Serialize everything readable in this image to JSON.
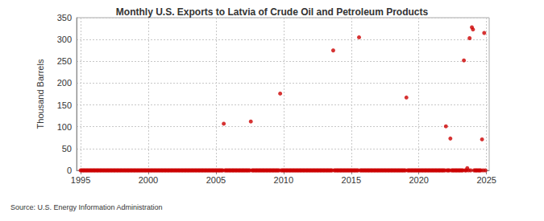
{
  "chart_data": {
    "type": "scatter",
    "title": "Monthly U.S. Exports to Latvia of Crude Oil and Petroleum Products",
    "y_label": "Thousand Barrels",
    "source": "Source: U.S. Energy Information Administration",
    "color": "#cc0000",
    "marker": "circle",
    "grid": true,
    "xlim": [
      1994.7,
      2025.2
    ],
    "xticks": [
      1995,
      2000,
      2005,
      2010,
      2015,
      2020,
      2025
    ],
    "ylim": [
      0,
      350
    ],
    "yticks": [
      0,
      50,
      100,
      150,
      200,
      250,
      300,
      350
    ],
    "x": [
      1995,
      1995.08,
      1995.17,
      1995.25,
      1995.33,
      1995.42,
      1995.5,
      1995.58,
      1995.67,
      1995.75,
      1995.83,
      1995.92,
      1996,
      1996.08,
      1996.17,
      1996.25,
      1996.33,
      1996.42,
      1996.5,
      1996.58,
      1996.67,
      1996.75,
      1996.83,
      1996.92,
      1997,
      1997.08,
      1997.17,
      1997.25,
      1997.33,
      1997.42,
      1997.5,
      1997.58,
      1997.67,
      1997.75,
      1997.83,
      1997.92,
      1998,
      1998.08,
      1998.17,
      1998.25,
      1998.33,
      1998.42,
      1998.5,
      1998.58,
      1998.67,
      1998.75,
      1998.83,
      1998.92,
      1999,
      1999.08,
      1999.17,
      1999.25,
      1999.33,
      1999.42,
      1999.5,
      1999.58,
      1999.67,
      1999.75,
      1999.83,
      1999.92,
      2000,
      2000.08,
      2000.17,
      2000.25,
      2000.33,
      2000.42,
      2000.5,
      2000.58,
      2000.67,
      2000.75,
      2000.83,
      2000.92,
      2001,
      2001.08,
      2001.17,
      2001.25,
      2001.33,
      2001.42,
      2001.5,
      2001.58,
      2001.67,
      2001.75,
      2001.83,
      2001.92,
      2002,
      2002.08,
      2002.17,
      2002.25,
      2002.33,
      2002.42,
      2002.5,
      2002.58,
      2002.67,
      2002.75,
      2002.83,
      2002.92,
      2003,
      2003.08,
      2003.17,
      2003.25,
      2003.33,
      2003.42,
      2003.5,
      2003.58,
      2003.67,
      2003.75,
      2003.83,
      2003.92,
      2004,
      2004.08,
      2004.17,
      2004.25,
      2004.33,
      2004.42,
      2004.5,
      2004.58,
      2004.67,
      2004.75,
      2004.83,
      2004.92,
      2005,
      2005.08,
      2005.17,
      2005.25,
      2005.33,
      2005.42,
      2005.5,
      2005.58,
      2005.67,
      2005.75,
      2005.83,
      2005.92,
      2006,
      2006.08,
      2006.17,
      2006.25,
      2006.33,
      2006.42,
      2006.5,
      2006.58,
      2006.67,
      2006.75,
      2006.83,
      2006.92,
      2007,
      2007.08,
      2007.17,
      2007.25,
      2007.33,
      2007.42,
      2007.5,
      2007.58,
      2007.67,
      2007.75,
      2007.83,
      2007.92,
      2008,
      2008.08,
      2008.17,
      2008.25,
      2008.33,
      2008.42,
      2008.5,
      2008.58,
      2008.67,
      2008.75,
      2008.83,
      2008.92,
      2009,
      2009.08,
      2009.17,
      2009.25,
      2009.33,
      2009.42,
      2009.5,
      2009.58,
      2009.67,
      2009.75,
      2009.83,
      2009.92,
      2010,
      2010.08,
      2010.17,
      2010.25,
      2010.33,
      2010.42,
      2010.5,
      2010.58,
      2010.67,
      2010.75,
      2010.83,
      2010.92,
      2011,
      2011.08,
      2011.17,
      2011.25,
      2011.33,
      2011.42,
      2011.5,
      2011.58,
      2011.67,
      2011.75,
      2011.83,
      2011.92,
      2012,
      2012.08,
      2012.17,
      2012.25,
      2012.33,
      2012.42,
      2012.5,
      2012.58,
      2012.67,
      2012.75,
      2012.83,
      2012.92,
      2013,
      2013.08,
      2013.17,
      2013.25,
      2013.33,
      2013.42,
      2013.5,
      2013.58,
      2013.67,
      2013.75,
      2013.83,
      2013.92,
      2014,
      2014.08,
      2014.17,
      2014.25,
      2014.33,
      2014.42,
      2014.5,
      2014.58,
      2014.67,
      2014.75,
      2014.83,
      2014.92,
      2015,
      2015.08,
      2015.17,
      2015.25,
      2015.33,
      2015.42,
      2015.5,
      2015.58,
      2015.67,
      2015.75,
      2015.83,
      2015.92,
      2016,
      2016.08,
      2016.17,
      2016.25,
      2016.33,
      2016.42,
      2016.5,
      2016.58,
      2016.67,
      2016.75,
      2016.83,
      2016.92,
      2017,
      2017.08,
      2017.17,
      2017.25,
      2017.33,
      2017.42,
      2017.5,
      2017.58,
      2017.67,
      2017.75,
      2017.83,
      2017.92,
      2018,
      2018.08,
      2018.17,
      2018.25,
      2018.33,
      2018.42,
      2018.5,
      2018.58,
      2018.67,
      2018.75,
      2018.83,
      2018.92,
      2019,
      2019.08,
      2019.17,
      2019.25,
      2019.33,
      2019.42,
      2019.5,
      2019.58,
      2019.67,
      2019.75,
      2019.83,
      2019.92,
      2020,
      2020.08,
      2020.17,
      2020.25,
      2020.33,
      2020.42,
      2020.5,
      2020.58,
      2020.67,
      2020.75,
      2020.83,
      2020.92,
      2021,
      2021.08,
      2021.17,
      2021.25,
      2021.33,
      2021.42,
      2021.5,
      2021.58,
      2021.67,
      2021.75,
      2021.83,
      2021.92,
      2022,
      2022.08,
      2022.17,
      2022.25,
      2022.33,
      2022.42,
      2022.5,
      2022.58,
      2022.67,
      2022.75,
      2022.83,
      2022.92,
      2023,
      2023.08,
      2023.17,
      2023.25,
      2023.33,
      2023.42,
      2023.5,
      2023.58,
      2023.67,
      2023.75,
      2023.83,
      2023.92,
      2024,
      2024.08,
      2024.17,
      2024.25,
      2024.33,
      2024.42,
      2024.5,
      2024.58,
      2024.67,
      2024.75,
      2024.83,
      2024.92
    ],
    "values": [
      0,
      0,
      0,
      0,
      0,
      0,
      0,
      0,
      0,
      0,
      0,
      0,
      0,
      0,
      0,
      0,
      0,
      0,
      0,
      0,
      0,
      0,
      0,
      0,
      0,
      0,
      0,
      0,
      0,
      0,
      0,
      0,
      0,
      0,
      0,
      0,
      0,
      0,
      0,
      0,
      0,
      0,
      0,
      0,
      0,
      0,
      0,
      0,
      0,
      0,
      0,
      0,
      0,
      0,
      0,
      0,
      0,
      0,
      0,
      0,
      0,
      0,
      0,
      0,
      0,
      0,
      0,
      0,
      0,
      0,
      0,
      0,
      0,
      0,
      0,
      0,
      0,
      0,
      0,
      0,
      0,
      0,
      0,
      0,
      0,
      0,
      0,
      0,
      0,
      0,
      0,
      0,
      0,
      0,
      0,
      0,
      0,
      0,
      0,
      0,
      0,
      0,
      0,
      0,
      0,
      0,
      0,
      0,
      0,
      0,
      0,
      0,
      0,
      0,
      0,
      0,
      0,
      0,
      0,
      0,
      0,
      0,
      0,
      0,
      0,
      0,
      0,
      107,
      0,
      0,
      0,
      0,
      0,
      0,
      0,
      0,
      0,
      0,
      0,
      0,
      0,
      0,
      0,
      0,
      0,
      0,
      0,
      0,
      0,
      0,
      0,
      112,
      0,
      0,
      0,
      0,
      0,
      0,
      0,
      0,
      0,
      0,
      0,
      0,
      0,
      0,
      0,
      0,
      0,
      0,
      0,
      0,
      0,
      0,
      0,
      0,
      0,
      176,
      0,
      0,
      0,
      0,
      0,
      0,
      0,
      0,
      0,
      0,
      0,
      0,
      0,
      0,
      0,
      0,
      0,
      0,
      0,
      0,
      0,
      0,
      0,
      0,
      0,
      0,
      0,
      0,
      0,
      0,
      0,
      0,
      0,
      0,
      0,
      0,
      0,
      0,
      0,
      0,
      0,
      0,
      0,
      0,
      0,
      0,
      275,
      0,
      0,
      0,
      0,
      0,
      0,
      0,
      0,
      0,
      0,
      0,
      0,
      0,
      0,
      0,
      0,
      0,
      0,
      0,
      0,
      0,
      0,
      305,
      0,
      0,
      0,
      0,
      0,
      0,
      0,
      0,
      0,
      0,
      0,
      0,
      0,
      0,
      0,
      0,
      0,
      0,
      0,
      0,
      0,
      0,
      0,
      0,
      0,
      0,
      0,
      0,
      0,
      0,
      0,
      0,
      0,
      0,
      0,
      0,
      0,
      0,
      0,
      0,
      0,
      167,
      0,
      0,
      0,
      0,
      0,
      0,
      0,
      0,
      0,
      0,
      0,
      0,
      0,
      0,
      0,
      0,
      0,
      0,
      0,
      0,
      0,
      0,
      0,
      0,
      0,
      0,
      0,
      0,
      0,
      0,
      0,
      0,
      0,
      0,
      101,
      0,
      0,
      0,
      73,
      0,
      0,
      0,
      0,
      0,
      0,
      0,
      0,
      0,
      0,
      0,
      252,
      0,
      0,
      5,
      0,
      303,
      0,
      328,
      323,
      0,
      0,
      0,
      0,
      0,
      0,
      0,
      71,
      0,
      315,
      0
    ]
  }
}
